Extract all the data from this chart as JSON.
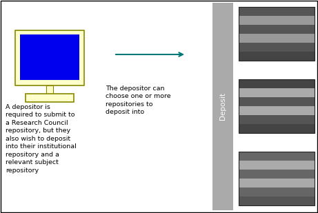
{
  "bg_color": "#ffffff",
  "border_color": "#000000",
  "monitor_outer_color": "#ffffcc",
  "monitor_screen_color": "#0000ee",
  "arrow_color": "#007777",
  "deposit_bar_color": "#aaaaaa",
  "deposit_text": "Deposit",
  "left_text": "A depositor is\nrequired to submit to\na Research Council\nrepository, but they\nalso wish to deposit\ninto their institutional\nrepository and a\nrelevant subject\nrepository",
  "mid_text": "The depositor can\nchoose one or more\nrepositories to\ndeposit into",
  "repo_stripe_colors_1": [
    "#555555",
    "#999999",
    "#555555",
    "#999999",
    "#555555",
    "#444444"
  ],
  "repo_stripe_colors_2": [
    "#444444",
    "#aaaaaa",
    "#555555",
    "#aaaaaa",
    "#555555",
    "#444444"
  ],
  "repo_stripe_colors_3": [
    "#666666",
    "#aaaaaa",
    "#666666",
    "#aaaaaa",
    "#666666",
    "#555555"
  ],
  "text_color": "#000000",
  "font_size": 6.8
}
